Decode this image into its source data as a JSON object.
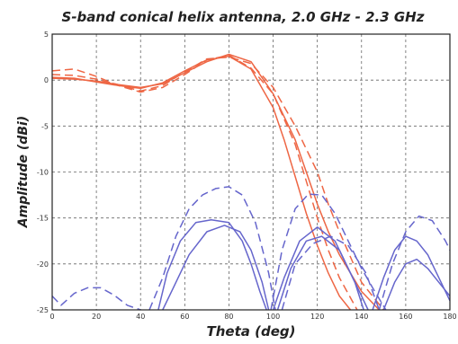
{
  "chart_data": {
    "type": "line",
    "title": "S-band conical helix antenna, 2.0 GHz - 2.3 GHz",
    "xlabel": "Theta (deg)",
    "ylabel": "Amplitude (dBi)",
    "xlim": [
      0,
      180
    ],
    "ylim": [
      -25,
      5
    ],
    "xticks": [
      0,
      20,
      40,
      60,
      80,
      100,
      120,
      140,
      160,
      180
    ],
    "yticks": [
      5,
      0,
      -5,
      -10,
      -15,
      -20,
      -25
    ],
    "grid": true,
    "colors": {
      "copolar": "#ee6644",
      "crosspolar": "#6666cc"
    },
    "series": [
      {
        "color": "#ee6644",
        "dash": "solid",
        "x": [
          0,
          10,
          20,
          30,
          40,
          50,
          60,
          70,
          80,
          90,
          100,
          105,
          110,
          115,
          120,
          125,
          130,
          135
        ],
        "y": [
          0.3,
          0.2,
          -0.2,
          -0.6,
          -0.9,
          -0.3,
          1.0,
          2.2,
          2.6,
          1.2,
          -3.0,
          -6.5,
          -10.5,
          -14.5,
          -18.0,
          -21.0,
          -23.5,
          -25.0
        ]
      },
      {
        "color": "#ee6644",
        "dash": "solid",
        "x": [
          0,
          10,
          20,
          30,
          40,
          50,
          60,
          70,
          80,
          90,
          100,
          110,
          115,
          120,
          125,
          130,
          140,
          148
        ],
        "y": [
          0.2,
          0.1,
          -0.1,
          -0.5,
          -0.8,
          -0.4,
          0.8,
          2.0,
          2.8,
          2.0,
          -1.5,
          -6.5,
          -10.0,
          -13.5,
          -16.5,
          -19.0,
          -23.0,
          -25.0
        ]
      },
      {
        "color": "#ee6644",
        "dash": "dash",
        "x": [
          0,
          10,
          20,
          30,
          40,
          50,
          60,
          70,
          80,
          90,
          100,
          110,
          115,
          120,
          125,
          130,
          138
        ],
        "y": [
          1.0,
          1.2,
          0.4,
          -0.6,
          -1.3,
          -0.8,
          0.6,
          2.2,
          2.7,
          1.3,
          -1.5,
          -7.0,
          -11.0,
          -15.0,
          -18.5,
          -21.5,
          -25.0
        ]
      },
      {
        "color": "#ee6644",
        "dash": "dash",
        "x": [
          0,
          10,
          20,
          30,
          40,
          50,
          60,
          70,
          80,
          90,
          100,
          110,
          120,
          125,
          130,
          140,
          150
        ],
        "y": [
          0.6,
          0.5,
          0.1,
          -0.5,
          -1.2,
          -0.6,
          0.9,
          2.3,
          2.5,
          1.8,
          -0.8,
          -5.0,
          -10.0,
          -13.5,
          -16.5,
          -22.0,
          -25.0
        ]
      },
      {
        "color": "#6666cc",
        "dash": "solid",
        "x": [
          48,
          52,
          58,
          65,
          72,
          80,
          86,
          90,
          94,
          97
        ],
        "y": [
          -25.0,
          -21.0,
          -17.5,
          -15.5,
          -15.2,
          -15.5,
          -17.5,
          -20.0,
          -23.0,
          -25.0
        ]
      },
      {
        "color": "#6666cc",
        "dash": "solid",
        "x": [
          50,
          55,
          62,
          70,
          78,
          85,
          90,
          95,
          98
        ],
        "y": [
          -25.0,
          -22.5,
          -19.0,
          -16.5,
          -15.8,
          -16.5,
          -18.5,
          -22.0,
          -25.0
        ]
      },
      {
        "color": "#6666cc",
        "dash": "solid",
        "x": [
          100,
          105,
          112,
          120,
          128,
          135,
          140,
          143
        ],
        "y": [
          -25.0,
          -21.5,
          -17.5,
          -16.0,
          -17.5,
          -21.0,
          -23.5,
          -25.0
        ]
      },
      {
        "color": "#6666cc",
        "dash": "solid",
        "x": [
          102,
          108,
          115,
          122,
          130,
          137,
          141
        ],
        "y": [
          -25.0,
          -20.5,
          -17.5,
          -17.0,
          -18.5,
          -22.0,
          -25.0
        ]
      },
      {
        "color": "#6666cc",
        "dash": "solid",
        "x": [
          145,
          150,
          155,
          160,
          165,
          170,
          175,
          180
        ],
        "y": [
          -25.0,
          -21.5,
          -18.5,
          -17.0,
          -17.5,
          -19.0,
          -21.5,
          -24.0
        ]
      },
      {
        "color": "#6666cc",
        "dash": "solid",
        "x": [
          150,
          155,
          160,
          165,
          170,
          175,
          180
        ],
        "y": [
          -25.0,
          -22.0,
          -20.0,
          -19.5,
          -20.5,
          -22.0,
          -23.5
        ]
      },
      {
        "color": "#6666cc",
        "dash": "dash",
        "x": [
          0,
          4,
          10,
          16,
          22,
          28,
          34,
          40
        ],
        "y": [
          -23.5,
          -24.5,
          -23.2,
          -22.6,
          -22.6,
          -23.4,
          -24.5,
          -25.0
        ]
      },
      {
        "color": "#6666cc",
        "dash": "dash",
        "x": [
          44,
          50,
          56,
          62,
          68,
          74,
          80,
          86,
          92,
          98,
          101
        ],
        "y": [
          -25.0,
          -21.5,
          -17.0,
          -14.0,
          -12.5,
          -11.8,
          -11.6,
          -12.5,
          -15.5,
          -21.0,
          -25.0
        ]
      },
      {
        "color": "#6666cc",
        "dash": "dash",
        "x": [
          99,
          104,
          110,
          116,
          122,
          128,
          134,
          140,
          146,
          151
        ],
        "y": [
          -25.0,
          -18.5,
          -14.0,
          -12.4,
          -12.5,
          -14.5,
          -17.5,
          -20.5,
          -23.0,
          -25.0
        ]
      },
      {
        "color": "#6666cc",
        "dash": "dash",
        "x": [
          104,
          110,
          118,
          126,
          134,
          142,
          148
        ],
        "y": [
          -25.0,
          -20.0,
          -17.8,
          -17.0,
          -18.0,
          -21.0,
          -25.0
        ]
      },
      {
        "color": "#6666cc",
        "dash": "dash",
        "x": [
          148,
          154,
          160,
          166,
          172,
          178,
          180
        ],
        "y": [
          -25.0,
          -20.0,
          -16.5,
          -14.8,
          -15.3,
          -17.5,
          -18.5
        ]
      }
    ]
  }
}
